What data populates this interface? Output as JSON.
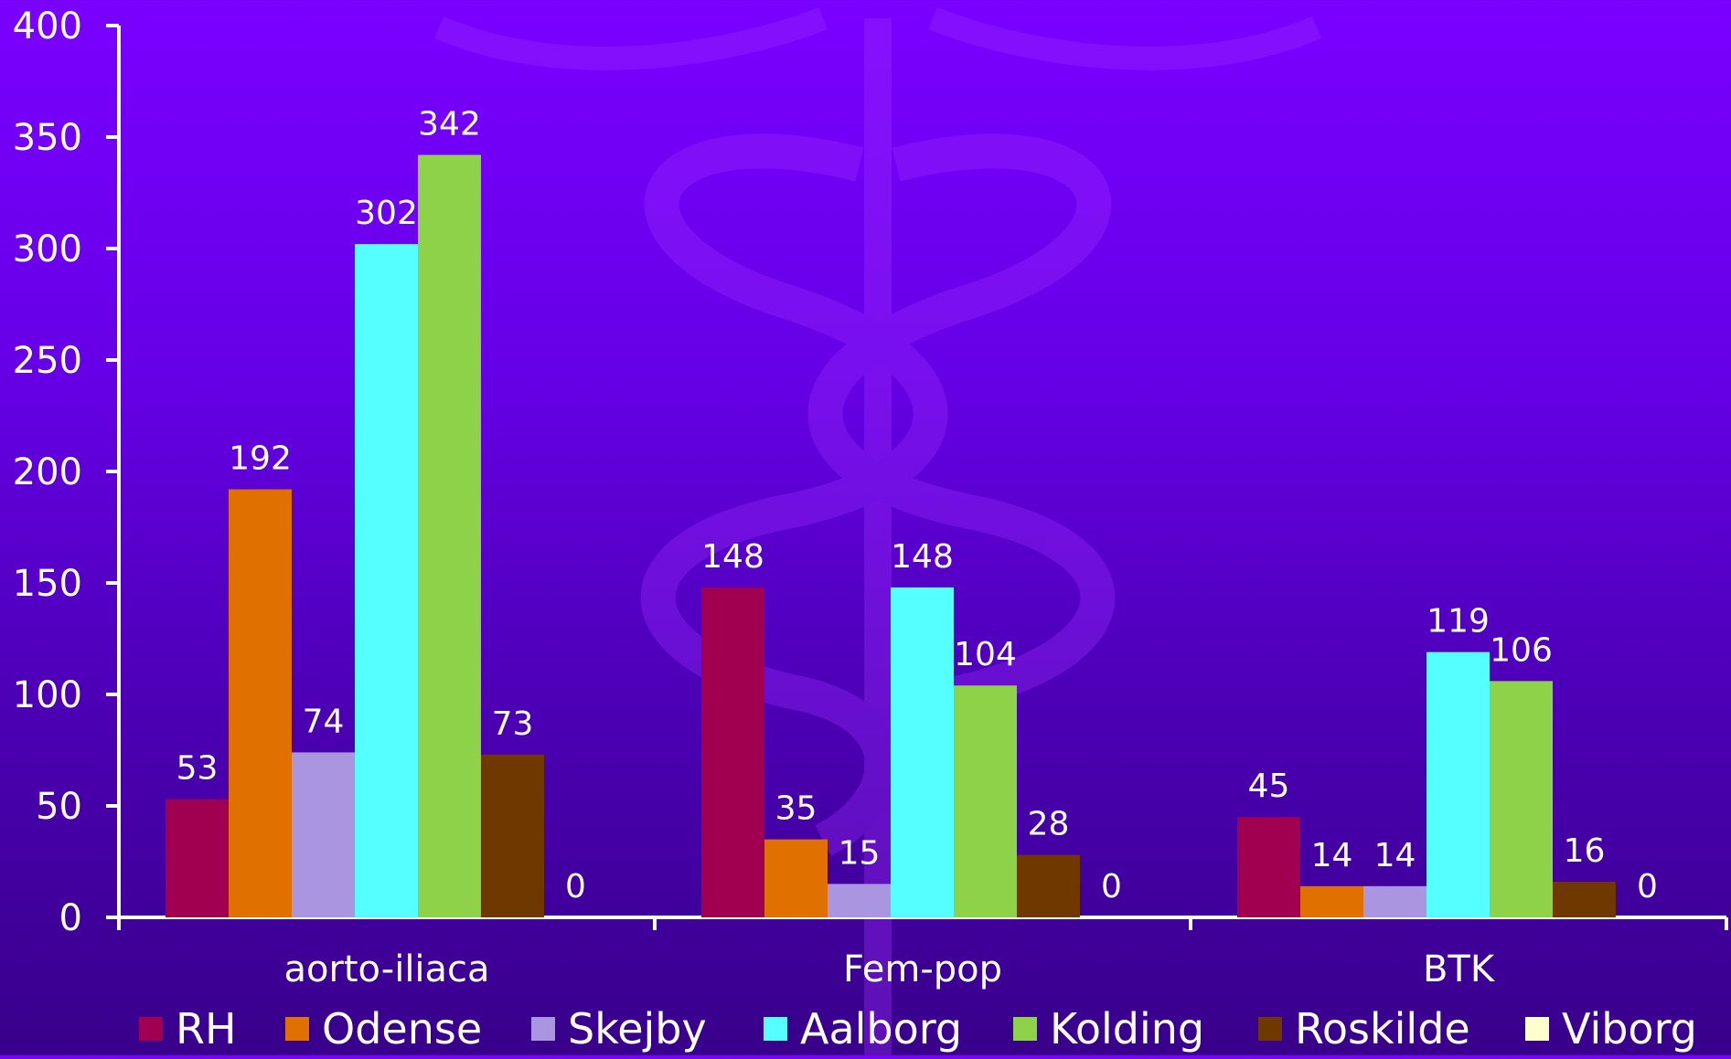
{
  "chart_data": {
    "type": "bar",
    "categories": [
      "aorto-iliaca",
      "Fem-pop",
      "BTK"
    ],
    "series": [
      {
        "name": "RH",
        "color": "#a0004f",
        "values": [
          53,
          148,
          45
        ]
      },
      {
        "name": "Odense",
        "color": "#e07000",
        "values": [
          192,
          35,
          14
        ]
      },
      {
        "name": "Skejby",
        "color": "#aa96e0",
        "values": [
          74,
          15,
          14
        ]
      },
      {
        "name": "Aalborg",
        "color": "#55ffff",
        "values": [
          302,
          148,
          119
        ]
      },
      {
        "name": "Kolding",
        "color": "#8ed24a",
        "values": [
          342,
          104,
          106
        ]
      },
      {
        "name": "Roskilde",
        "color": "#6e3800",
        "values": [
          73,
          28,
          16
        ]
      },
      {
        "name": "Viborg",
        "color": "#ffffcc",
        "values": [
          0,
          0,
          0
        ]
      }
    ],
    "ylim": [
      0,
      400
    ],
    "yticks": [
      0,
      50,
      100,
      150,
      200,
      250,
      300,
      350,
      400
    ],
    "xlabel": "",
    "ylabel": "",
    "legend_position": "bottom",
    "data_labels": true,
    "grid": false
  }
}
